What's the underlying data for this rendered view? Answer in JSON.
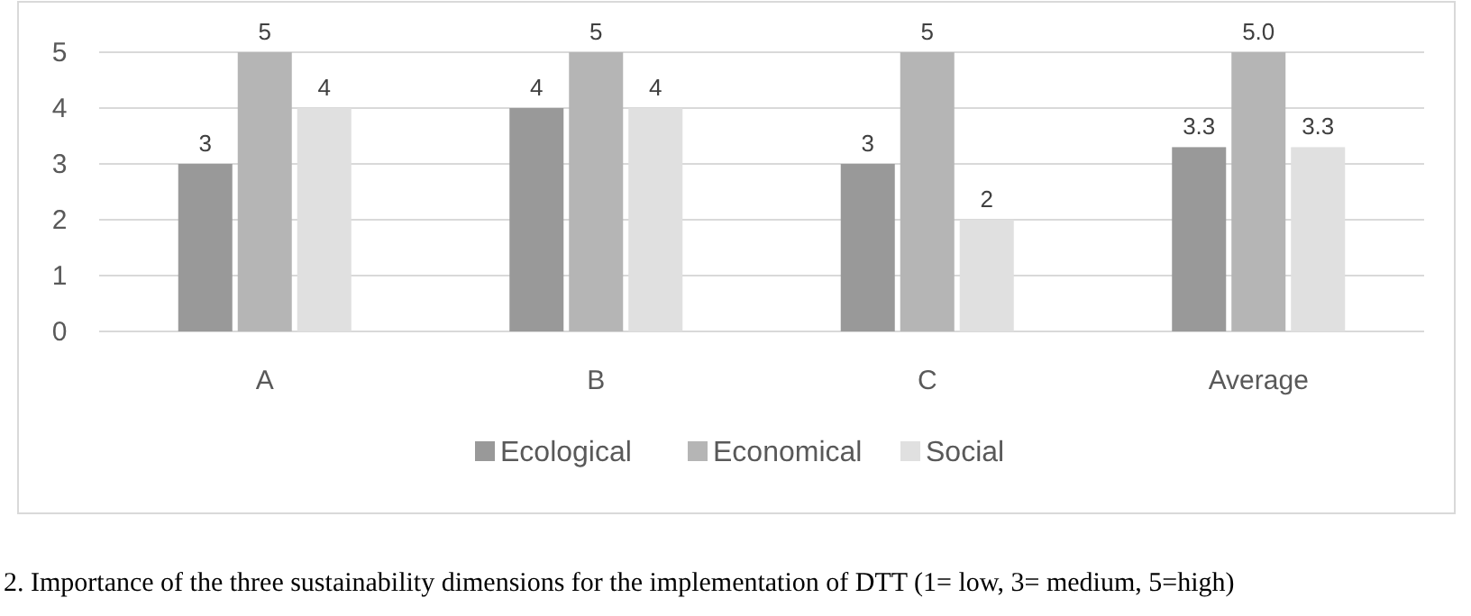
{
  "chart_data": {
    "type": "bar",
    "categories": [
      "A",
      "B",
      "C",
      "Average"
    ],
    "series": [
      {
        "name": "Ecological",
        "color": "#999999",
        "values": [
          3,
          4,
          3,
          3.3
        ],
        "value_labels": [
          "3",
          "4",
          "3",
          "3.3"
        ]
      },
      {
        "name": "Economical",
        "color": "#b5b5b5",
        "values": [
          5,
          5,
          5,
          5.0
        ],
        "value_labels": [
          "5",
          "5",
          "5",
          "5.0"
        ]
      },
      {
        "name": "Social",
        "color": "#e0e0e0",
        "values": [
          4,
          4,
          2,
          3.3
        ],
        "value_labels": [
          "4",
          "4",
          "2",
          "3.3"
        ]
      }
    ],
    "ylim": [
      0,
      5
    ],
    "yticks": [
      0,
      1,
      2,
      3,
      4,
      5
    ],
    "grid": "y",
    "legend": "bottom",
    "annotations": [
      "2. Importance of the three sustainability dimensions for the implementation of DTT (1= low, 3= medium, 5=high)"
    ]
  }
}
